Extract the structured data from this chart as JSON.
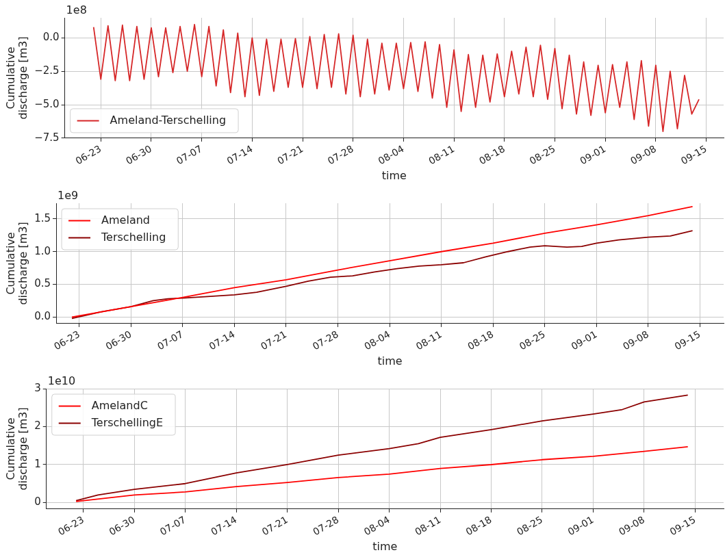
{
  "chart_data": [
    {
      "type": "line",
      "xlabel": "time",
      "ylabel": "Cumulative\ndischarge [m3]",
      "annotations": [
        "1e8"
      ],
      "legend": "bottom left",
      "grid": true,
      "marker": "none",
      "line_style": "solid",
      "xlim": [
        "--06-18T00:00",
        "--09-17T10:00"
      ],
      "ylim": [
        -7.5,
        1.5
      ],
      "yticks": [
        {
          "value": -7.5,
          "label": "−7.5"
        },
        {
          "value": -5.0,
          "label": "−5.0"
        },
        {
          "value": -2.5,
          "label": "−2.5"
        },
        {
          "value": 0,
          "label": "0.0"
        }
      ],
      "xticks": [
        {
          "value": "--06-23",
          "label": "06-23"
        },
        {
          "value": "--06-30",
          "label": "06-30"
        },
        {
          "value": "--07-07",
          "label": "07-07"
        },
        {
          "value": "--07-14",
          "label": "07-14"
        },
        {
          "value": "--07-21",
          "label": "07-21"
        },
        {
          "value": "--07-28",
          "label": "07-28"
        },
        {
          "value": "--08-04",
          "label": "08-04"
        },
        {
          "value": "--08-11",
          "label": "08-11"
        },
        {
          "value": "--08-18",
          "label": "08-18"
        },
        {
          "value": "--08-25",
          "label": "08-25"
        },
        {
          "value": "--09-01",
          "label": "09-01"
        },
        {
          "value": "--09-08",
          "label": "09-08"
        },
        {
          "value": "--09-15",
          "label": "09-15"
        }
      ],
      "x": [
        "--06-22",
        "--06-23",
        "--06-24",
        "--06-25",
        "--06-26",
        "--06-27",
        "--06-28",
        "--06-29",
        "--06-30",
        "--07-01",
        "--07-02",
        "--07-03",
        "--07-04",
        "--07-05",
        "--07-06",
        "--07-07",
        "--07-08",
        "--07-09",
        "--07-10",
        "--07-11",
        "--07-12",
        "--07-13",
        "--07-14",
        "--07-15",
        "--07-16",
        "--07-17",
        "--07-18",
        "--07-19",
        "--07-20",
        "--07-21",
        "--07-22",
        "--07-23",
        "--07-24",
        "--07-25",
        "--07-26",
        "--07-27",
        "--07-28",
        "--07-29",
        "--07-30",
        "--07-31",
        "--08-01",
        "--08-02",
        "--08-03",
        "--08-04",
        "--08-05",
        "--08-06",
        "--08-07",
        "--08-08",
        "--08-09",
        "--08-10",
        "--08-11",
        "--08-12",
        "--08-13",
        "--08-14",
        "--08-15",
        "--08-16",
        "--08-17",
        "--08-18",
        "--08-19",
        "--08-20",
        "--08-21",
        "--08-22",
        "--08-23",
        "--08-24",
        "--08-25",
        "--08-26",
        "--08-27",
        "--08-28",
        "--08-29",
        "--08-30",
        "--08-31",
        "--09-01",
        "--09-02",
        "--09-03",
        "--09-04",
        "--09-05",
        "--09-06",
        "--09-07",
        "--09-08",
        "--09-09",
        "--09-10",
        "--09-11",
        "--09-12",
        "--09-13",
        "--09-14"
      ],
      "series": [
        {
          "name": "Ameland-Terschelling",
          "color": "#d62728",
          "values": [
            0.8,
            -3.1,
            0.9,
            -3.2,
            0.95,
            -3.2,
            0.85,
            -3.1,
            0.75,
            -2.9,
            0.75,
            -2.6,
            0.85,
            -2.5,
            1.0,
            -2.9,
            0.85,
            -3.6,
            0.6,
            -4.1,
            0.35,
            -4.4,
            0.0,
            -4.3,
            -0.1,
            -4.0,
            -0.1,
            -3.7,
            -0.05,
            -3.7,
            0.1,
            -3.8,
            0.25,
            -3.7,
            0.3,
            -4.2,
            0.2,
            -4.4,
            -0.1,
            -4.2,
            -0.4,
            -3.9,
            -0.4,
            -3.8,
            -0.35,
            -4.0,
            -0.3,
            -4.5,
            -0.5,
            -5.2,
            -0.9,
            -5.5,
            -1.25,
            -5.2,
            -1.3,
            -4.8,
            -1.2,
            -4.4,
            -1.0,
            -4.2,
            -0.7,
            -4.4,
            -0.55,
            -4.6,
            -0.8,
            -5.3,
            -1.3,
            -5.7,
            -1.8,
            -5.8,
            -2.05,
            -5.6,
            -2.0,
            -5.2,
            -1.8,
            -6.1,
            -1.7,
            -6.6,
            -2.05,
            -7.0,
            -2.5,
            -6.8,
            -2.8,
            -5.7,
            -4.6
          ]
        }
      ]
    },
    {
      "type": "line",
      "xlabel": "time",
      "ylabel": "Cumulative\ndischarge [m3]",
      "annotations": [
        "1e9"
      ],
      "legend": "top left",
      "grid": true,
      "marker": "none",
      "line_style": "solid",
      "xlim": [
        "--06-19T21:00",
        "--09-18T05:00"
      ],
      "ylim": [
        -0.1,
        1.74
      ],
      "yticks": [
        {
          "value": 0,
          "label": "0.0"
        },
        {
          "value": 0.5,
          "label": "0.5"
        },
        {
          "value": 1.0,
          "label": "1.0"
        },
        {
          "value": 1.5,
          "label": "1.5"
        }
      ],
      "xticks": [
        {
          "value": "--06-23",
          "label": "06-23"
        },
        {
          "value": "--06-30",
          "label": "06-30"
        },
        {
          "value": "--07-07",
          "label": "07-07"
        },
        {
          "value": "--07-14",
          "label": "07-14"
        },
        {
          "value": "--07-21",
          "label": "07-21"
        },
        {
          "value": "--07-28",
          "label": "07-28"
        },
        {
          "value": "--08-04",
          "label": "08-04"
        },
        {
          "value": "--08-11",
          "label": "08-11"
        },
        {
          "value": "--08-18",
          "label": "08-18"
        },
        {
          "value": "--08-25",
          "label": "08-25"
        },
        {
          "value": "--09-01",
          "label": "09-01"
        },
        {
          "value": "--09-08",
          "label": "09-08"
        },
        {
          "value": "--09-15",
          "label": "09-15"
        }
      ],
      "series": [
        {
          "name": "Ameland",
          "color": "#ff0000",
          "x": [
            "--06-22",
            "--06-30",
            "--07-07",
            "--07-14",
            "--07-21",
            "--07-28",
            "--08-04",
            "--08-11",
            "--08-18",
            "--08-25",
            "--09-01",
            "--09-08",
            "--09-14"
          ],
          "values": [
            0.0,
            0.16,
            0.3,
            0.45,
            0.57,
            0.72,
            0.86,
            1.0,
            1.13,
            1.28,
            1.41,
            1.55,
            1.69
          ]
        },
        {
          "name": "Terschelling",
          "color": "#8b0000",
          "x": [
            "--06-22",
            "--06-26",
            "--06-30",
            "--07-03",
            "--07-05",
            "--07-07",
            "--07-10",
            "--07-14",
            "--07-17",
            "--07-21",
            "--07-24",
            "--07-27",
            "--07-30",
            "--08-02",
            "--08-05",
            "--08-08",
            "--08-11",
            "--08-14",
            "--08-17",
            "--08-20",
            "--08-23",
            "--08-25",
            "--08-28",
            "--08-30",
            "--09-01",
            "--09-04",
            "--09-08",
            "--09-11",
            "--09-14"
          ],
          "values": [
            -0.02,
            0.08,
            0.16,
            0.25,
            0.28,
            0.29,
            0.31,
            0.34,
            0.38,
            0.47,
            0.55,
            0.61,
            0.63,
            0.69,
            0.74,
            0.78,
            0.8,
            0.83,
            0.92,
            1.0,
            1.07,
            1.09,
            1.07,
            1.08,
            1.13,
            1.18,
            1.22,
            1.24,
            1.32
          ]
        }
      ]
    },
    {
      "type": "line",
      "xlabel": "time",
      "ylabel": "Cumulative\ndischarge [m3]",
      "annotations": [
        "1e10"
      ],
      "legend": "top left",
      "grid": true,
      "marker": "none",
      "line_style": "solid",
      "xlim": [
        "--06-17T22:00",
        "--09-18T22:00"
      ],
      "ylim": [
        -0.17,
        3
      ],
      "yticks": [
        0,
        1,
        2,
        3
      ],
      "xticks": [
        {
          "value": "--06-23",
          "label": "06-23"
        },
        {
          "value": "--06-30",
          "label": "06-30"
        },
        {
          "value": "--07-07",
          "label": "07-07"
        },
        {
          "value": "--07-14",
          "label": "07-14"
        },
        {
          "value": "--07-21",
          "label": "07-21"
        },
        {
          "value": "--07-28",
          "label": "07-28"
        },
        {
          "value": "--08-04",
          "label": "08-04"
        },
        {
          "value": "--08-11",
          "label": "08-11"
        },
        {
          "value": "--08-18",
          "label": "08-18"
        },
        {
          "value": "--08-25",
          "label": "08-25"
        },
        {
          "value": "--09-01",
          "label": "09-01"
        },
        {
          "value": "--09-08",
          "label": "09-08"
        },
        {
          "value": "--09-15",
          "label": "09-15"
        }
      ],
      "series": [
        {
          "name": "AmelandC",
          "color": "#ff0000",
          "x": [
            "--06-22",
            "--06-30",
            "--07-07",
            "--07-14",
            "--07-21",
            "--07-28",
            "--08-04",
            "--08-11",
            "--08-18",
            "--08-25",
            "--09-01",
            "--09-08",
            "--09-14"
          ],
          "values": [
            0.03,
            0.2,
            0.28,
            0.42,
            0.53,
            0.66,
            0.75,
            0.9,
            1.0,
            1.13,
            1.22,
            1.35,
            1.47
          ]
        },
        {
          "name": "TerschellingE",
          "color": "#8b0000",
          "x": [
            "--06-22",
            "--06-25",
            "--06-30",
            "--07-07",
            "--07-14",
            "--07-21",
            "--07-28",
            "--08-04",
            "--08-08",
            "--08-11",
            "--08-18",
            "--08-25",
            "--09-01",
            "--09-05",
            "--09-08",
            "--09-14"
          ],
          "values": [
            0.05,
            0.2,
            0.35,
            0.5,
            0.78,
            1.0,
            1.25,
            1.42,
            1.55,
            1.72,
            1.92,
            2.15,
            2.33,
            2.45,
            2.65,
            2.83
          ]
        }
      ]
    }
  ]
}
